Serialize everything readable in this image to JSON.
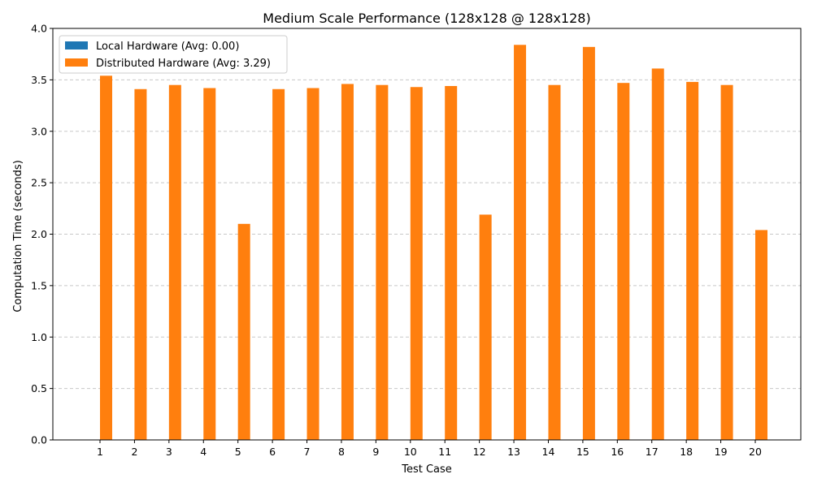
{
  "chart_data": {
    "type": "bar",
    "title": "Medium Scale Performance (128x128 @ 128x128)",
    "xlabel": "Test Case",
    "ylabel": "Computation Time (seconds)",
    "ylim": [
      0,
      4.0
    ],
    "yticks": [
      "0.0",
      "0.5",
      "1.0",
      "1.5",
      "2.0",
      "2.5",
      "3.0",
      "3.5",
      "4.0"
    ],
    "grid": "y-dashed",
    "legend_position": "top-left",
    "categories": [
      "1",
      "2",
      "3",
      "4",
      "5",
      "6",
      "7",
      "8",
      "9",
      "10",
      "11",
      "12",
      "13",
      "14",
      "15",
      "16",
      "17",
      "18",
      "19",
      "20"
    ],
    "series": [
      {
        "name": "Local Hardware (Avg: 0.00)",
        "color": "#1f77b4",
        "values": [
          0.003,
          0.003,
          0.003,
          0.003,
          0.003,
          0.003,
          0.003,
          0.003,
          0.003,
          0.003,
          0.003,
          0.003,
          0.003,
          0.003,
          0.003,
          0.003,
          0.003,
          0.003,
          0.003,
          0.003
        ]
      },
      {
        "name": "Distributed Hardware (Avg: 3.29)",
        "color": "#ff7f0e",
        "values": [
          3.54,
          3.41,
          3.45,
          3.42,
          2.1,
          3.41,
          3.42,
          3.46,
          3.45,
          3.43,
          3.44,
          2.19,
          3.84,
          3.45,
          3.82,
          3.47,
          3.61,
          3.48,
          3.45,
          2.04
        ]
      }
    ]
  }
}
